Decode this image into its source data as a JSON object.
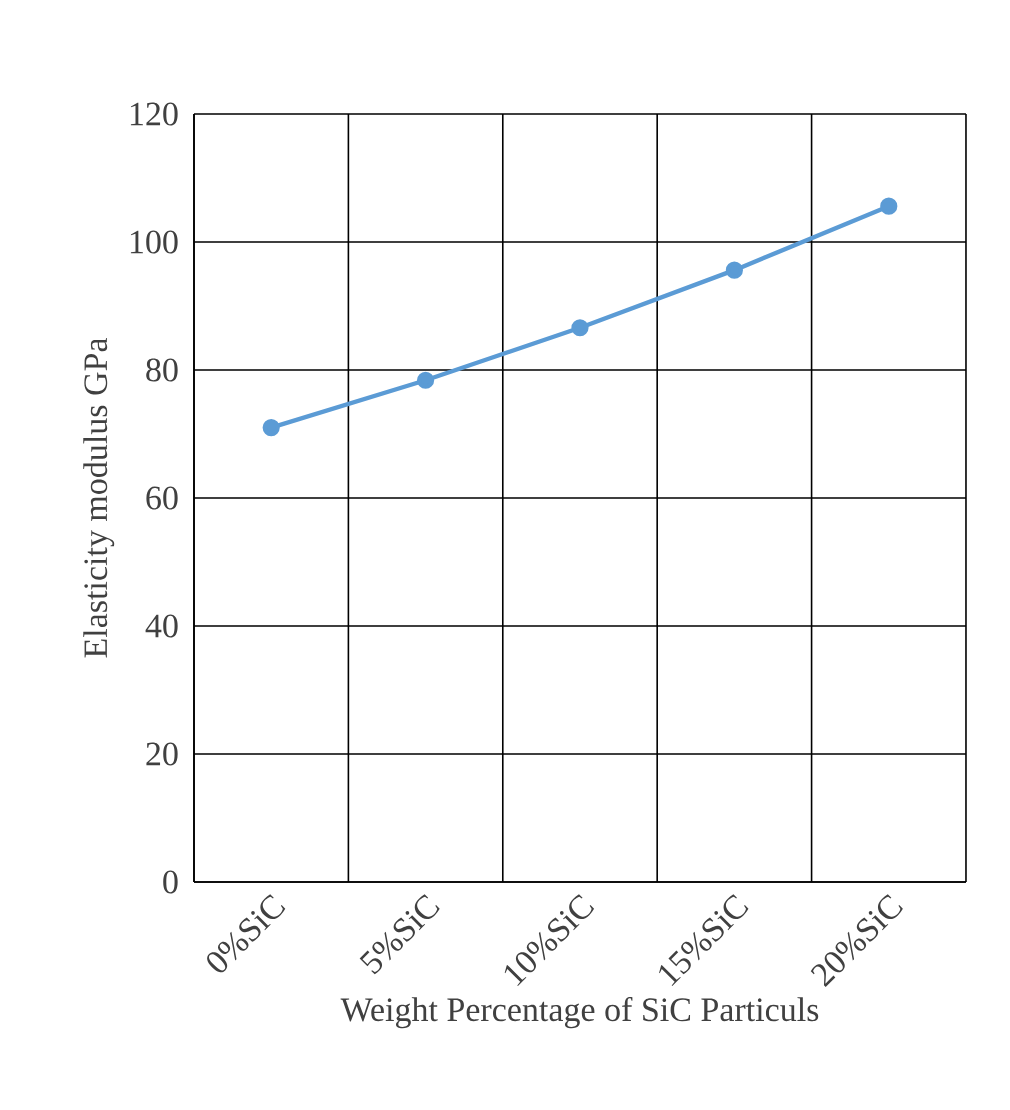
{
  "chart_data": {
    "type": "line",
    "xlabel": "Weight Percentage of SiC Particuls",
    "ylabel": "Elasticity modulus GPa",
    "categories": [
      "0%SiC",
      "5%SiC",
      "10%SiC",
      "15%SiC",
      "20%SiC"
    ],
    "series": [
      {
        "color": "#5b9bd5",
        "values": [
          71,
          78.4,
          86.6,
          95.6,
          105.6
        ]
      }
    ],
    "ylim": [
      0,
      120
    ],
    "yticks": [
      0,
      20,
      40,
      60,
      80,
      100,
      120
    ],
    "grid": true,
    "marker": "circle",
    "line_style": "solid"
  }
}
